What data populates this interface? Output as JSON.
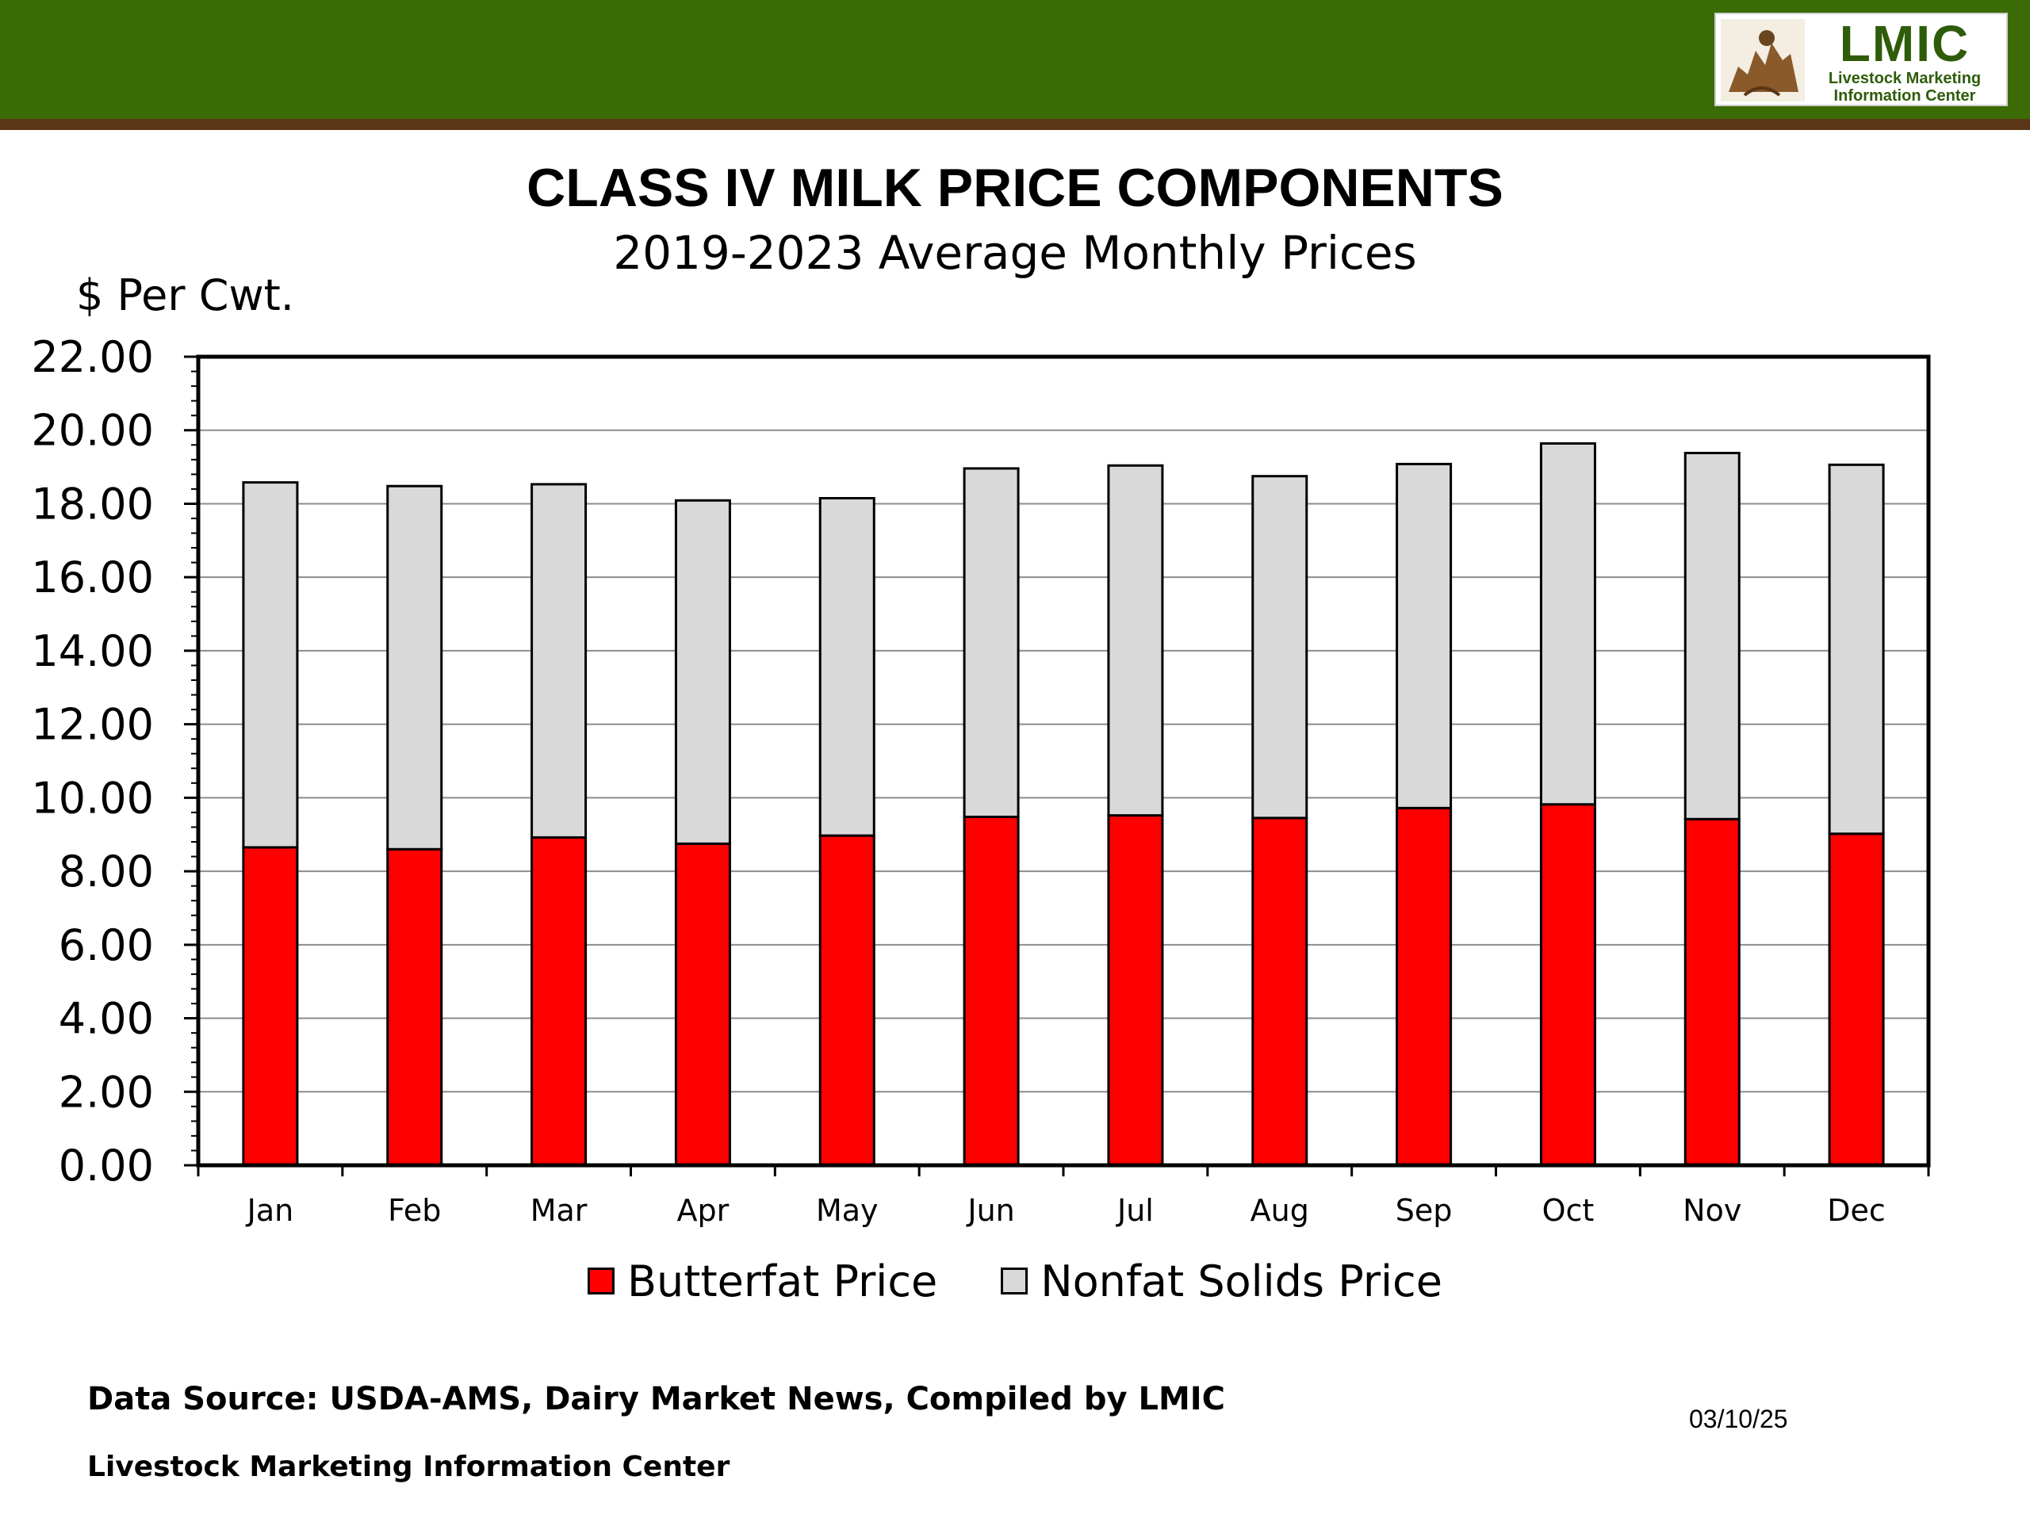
{
  "header": {
    "logo_word": "LMIC",
    "logo_line1": "Livestock Marketing",
    "logo_line2": "Information Center",
    "band_color": "#3a6b05",
    "rule_color": "#5a3616"
  },
  "chart_data": {
    "type": "bar",
    "stacked": true,
    "title": "CLASS IV MILK PRICE COMPONENTS",
    "subtitle": "2019-2023 Average Monthly Prices",
    "ylabel": "$ Per Cwt.",
    "xlabel": "",
    "ylim": [
      0,
      22
    ],
    "ytick_step": 2,
    "ytick_labels": [
      "0.00",
      "2.00",
      "4.00",
      "6.00",
      "8.00",
      "10.00",
      "12.00",
      "14.00",
      "16.00",
      "18.00",
      "20.00",
      "22.00"
    ],
    "grid": true,
    "legend_position": "bottom",
    "categories": [
      "Jan",
      "Feb",
      "Mar",
      "Apr",
      "May",
      "Jun",
      "Jul",
      "Aug",
      "Sep",
      "Oct",
      "Nov",
      "Dec"
    ],
    "series": [
      {
        "name": "Butterfat Price",
        "color": "#ff0000",
        "values": [
          8.65,
          8.6,
          8.92,
          8.75,
          8.97,
          9.48,
          9.52,
          9.45,
          9.72,
          9.82,
          9.42,
          9.02
        ]
      },
      {
        "name": "Nonfat Solids Price",
        "color": "#d9d9d9",
        "values": [
          9.93,
          9.88,
          9.61,
          9.34,
          9.18,
          9.48,
          9.52,
          9.3,
          9.36,
          9.82,
          9.96,
          10.04
        ]
      }
    ]
  },
  "footer": {
    "source": "Data Source:  USDA-AMS, Dairy Market News, Compiled by LMIC",
    "org": "Livestock Marketing Information Center",
    "date": "03/10/25"
  }
}
